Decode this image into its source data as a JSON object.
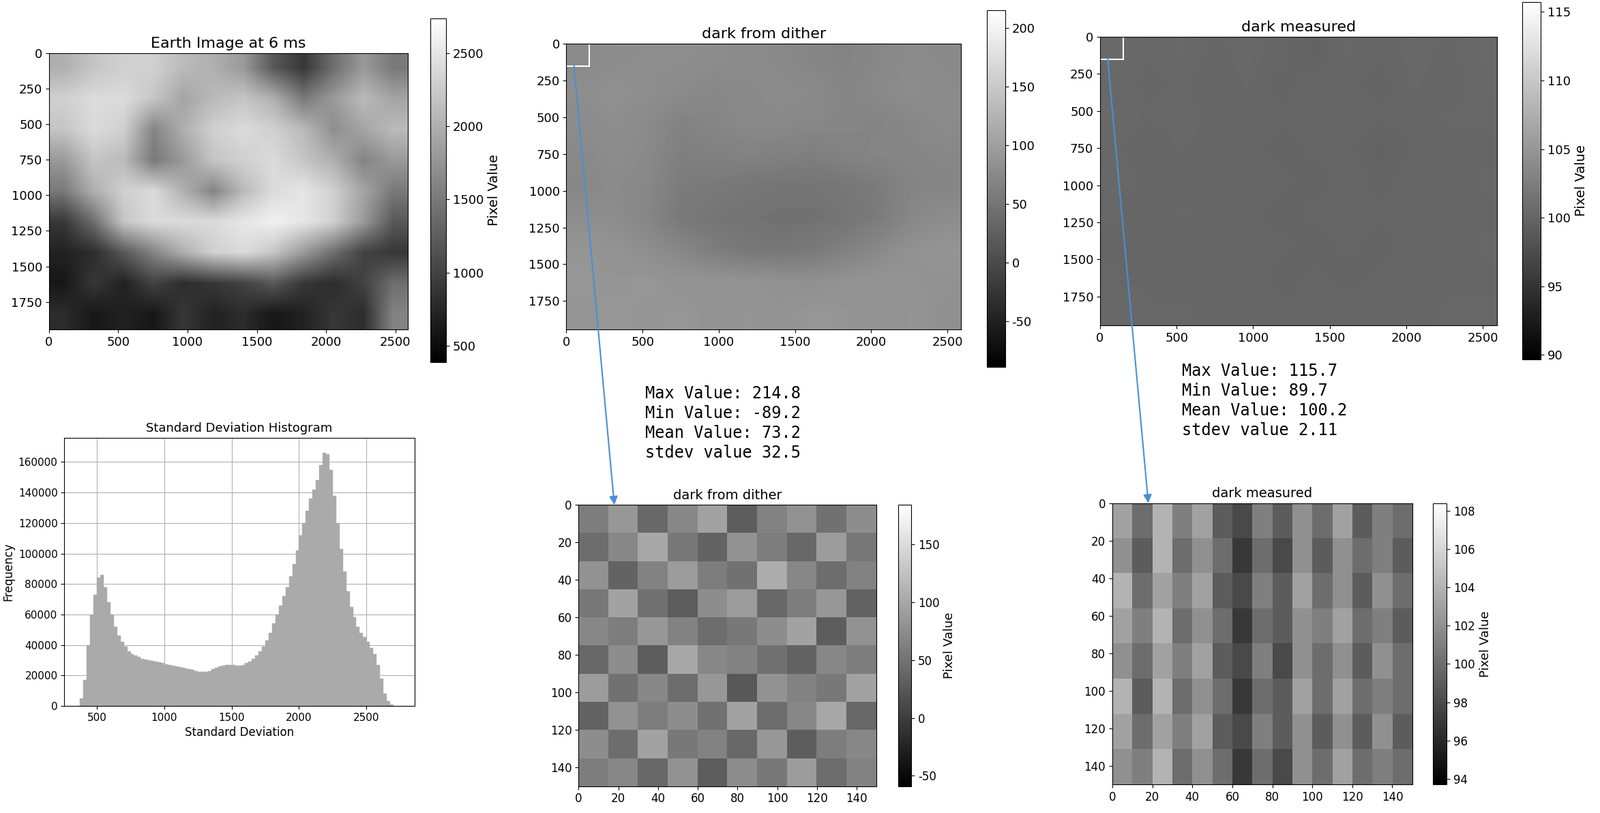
{
  "chart_data": [
    {
      "type": "heatmap",
      "title": "Earth Image at 6 ms",
      "xlim": [
        0,
        2592
      ],
      "ylim": [
        1944,
        0
      ],
      "xticks": [
        0,
        500,
        1000,
        1500,
        2000,
        2500
      ],
      "yticks": [
        0,
        250,
        500,
        750,
        1000,
        1250,
        1500,
        1750
      ],
      "cells": [
        [
          2000,
          2200,
          2300,
          2300,
          2100,
          2000,
          1800,
          1200,
          900,
          1400,
          1800,
          1500
        ],
        [
          2300,
          2400,
          2400,
          2200,
          1900,
          2100,
          2200,
          2000,
          1500,
          1800,
          2100,
          1900
        ],
        [
          2200,
          2400,
          2300,
          1600,
          2000,
          2300,
          2400,
          2300,
          2100,
          1700,
          1900,
          2100
        ],
        [
          1800,
          2200,
          2100,
          1500,
          1800,
          2200,
          2300,
          2400,
          2200,
          2000,
          1600,
          1800
        ],
        [
          1500,
          2000,
          2300,
          2400,
          2000,
          1600,
          2100,
          2400,
          2500,
          2300,
          1900,
          1500
        ],
        [
          900,
          1400,
          2200,
          2400,
          2400,
          2400,
          2500,
          2600,
          2500,
          2300,
          1800,
          1200
        ],
        [
          700,
          800,
          1200,
          1600,
          2000,
          2300,
          2400,
          2200,
          1800,
          1400,
          1000,
          900
        ],
        [
          600,
          900,
          700,
          1000,
          800,
          900,
          1000,
          1200,
          900,
          800,
          1000,
          1400
        ],
        [
          800,
          600,
          700,
          600,
          900,
          700,
          800,
          600,
          700,
          900,
          800,
          1600
        ]
      ],
      "colorbar": {
        "range": [
          388,
          2737
        ],
        "ticks": [
          500,
          1000,
          1500,
          2000,
          2500
        ],
        "label": "Pixel Value"
      }
    },
    {
      "type": "histogram",
      "title": "Standard Deviation Histogram",
      "x_label": "Standard Deviation",
      "y_label": "Frequency",
      "color": "#aaaaaa",
      "grid": true,
      "xlim": [
        258,
        2856
      ],
      "ylim": [
        0,
        176000
      ],
      "xticks": [
        500,
        1000,
        1500,
        2000,
        2500
      ],
      "yticks": [
        0,
        20000,
        40000,
        60000,
        80000,
        100000,
        120000,
        140000,
        160000
      ],
      "bins": [
        375,
        400,
        425,
        450,
        475,
        500,
        525,
        550,
        575,
        600,
        625,
        650,
        675,
        700,
        725,
        750,
        775,
        800,
        825,
        850,
        875,
        900,
        925,
        950,
        975,
        1000,
        1025,
        1050,
        1075,
        1100,
        1125,
        1150,
        1175,
        1200,
        1225,
        1250,
        1275,
        1300,
        1325,
        1350,
        1375,
        1400,
        1425,
        1450,
        1475,
        1500,
        1525,
        1550,
        1575,
        1600,
        1625,
        1650,
        1675,
        1700,
        1725,
        1750,
        1775,
        1800,
        1825,
        1850,
        1875,
        1900,
        1925,
        1950,
        1975,
        2000,
        2025,
        2050,
        2075,
        2100,
        2125,
        2150,
        2175,
        2200,
        2225,
        2250,
        2275,
        2300,
        2325,
        2350,
        2375,
        2400,
        2425,
        2450,
        2475,
        2500,
        2525,
        2550,
        2575,
        2600,
        2625,
        2650,
        2675,
        2700
      ],
      "counts": [
        5000,
        17000,
        40000,
        60000,
        73000,
        84000,
        86000,
        78000,
        68000,
        60000,
        52000,
        46000,
        42000,
        39000,
        36000,
        34000,
        33000,
        32000,
        31000,
        30500,
        30000,
        29500,
        29000,
        28500,
        28000,
        27500,
        27000,
        26500,
        26000,
        25500,
        25000,
        24500,
        24000,
        23500,
        23000,
        22500,
        22500,
        22500,
        23000,
        24000,
        25000,
        26000,
        26500,
        27000,
        27000,
        27000,
        26500,
        26500,
        27000,
        28000,
        29000,
        31000,
        33000,
        36000,
        39000,
        43000,
        48000,
        54000,
        60000,
        66000,
        72000,
        78000,
        85000,
        93000,
        102000,
        112000,
        120000,
        128000,
        136000,
        142000,
        148000,
        158000,
        166000,
        165000,
        155000,
        138000,
        120000,
        103000,
        88000,
        75000,
        65000,
        58000,
        52000,
        48000,
        45000,
        42000,
        38000,
        34000,
        27000,
        18000,
        8000,
        3000,
        1000
      ]
    },
    {
      "type": "heatmap",
      "title": "dark from dither",
      "xlim": [
        0,
        2592
      ],
      "ylim": [
        1944,
        0
      ],
      "xticks": [
        0,
        500,
        1000,
        1500,
        2000,
        2500
      ],
      "yticks": [
        0,
        250,
        500,
        750,
        1000,
        1250,
        1500,
        1750
      ],
      "cells": [
        [
          75,
          78,
          80,
          80,
          78,
          76,
          74,
          70,
          68,
          72,
          76,
          74
        ],
        [
          80,
          82,
          80,
          76,
          72,
          74,
          76,
          75,
          70,
          74,
          78,
          76
        ],
        [
          78,
          80,
          76,
          66,
          70,
          74,
          74,
          72,
          70,
          68,
          72,
          76
        ],
        [
          74,
          78,
          74,
          62,
          64,
          66,
          64,
          62,
          66,
          70,
          70,
          72
        ],
        [
          72,
          76,
          72,
          58,
          56,
          52,
          50,
          50,
          52,
          58,
          68,
          70
        ],
        [
          80,
          78,
          70,
          55,
          50,
          48,
          46,
          46,
          50,
          58,
          72,
          78
        ],
        [
          88,
          86,
          80,
          72,
          60,
          54,
          52,
          56,
          64,
          74,
          84,
          88
        ],
        [
          90,
          88,
          90,
          86,
          88,
          86,
          84,
          82,
          86,
          88,
          86,
          84
        ],
        [
          88,
          90,
          88,
          90,
          86,
          88,
          86,
          90,
          88,
          86,
          88,
          82
        ]
      ],
      "colorbar": {
        "range": [
          -89.2,
          214.8
        ],
        "ticks": [
          -50,
          0,
          50,
          100,
          150,
          200
        ]
      },
      "annotations": [
        "Max Value: 214.8",
        "Min Value: -89.2",
        "Mean Value: 73.2",
        "stdev value 32.5"
      ]
    },
    {
      "type": "heatmap",
      "title": "dark from dither",
      "xlim": [
        0,
        150
      ],
      "ylim": [
        150,
        0
      ],
      "xticks": [
        0,
        20,
        40,
        60,
        80,
        100,
        120,
        140
      ],
      "yticks": [
        0,
        20,
        40,
        60,
        80,
        100,
        120,
        140
      ],
      "cells": [
        [
          60,
          85,
          40,
          70,
          95,
          30,
          65,
          80,
          50,
          75
        ],
        [
          45,
          70,
          100,
          55,
          35,
          80,
          60,
          40,
          90,
          55
        ],
        [
          80,
          35,
          65,
          90,
          60,
          50,
          105,
          70,
          45,
          65
        ],
        [
          55,
          95,
          50,
          30,
          75,
          90,
          40,
          60,
          85,
          35
        ],
        [
          70,
          60,
          85,
          65,
          45,
          55,
          75,
          95,
          30,
          80
        ],
        [
          40,
          75,
          30,
          100,
          70,
          65,
          50,
          35,
          70,
          60
        ],
        [
          90,
          50,
          70,
          45,
          85,
          25,
          80,
          65,
          55,
          95
        ],
        [
          35,
          80,
          60,
          75,
          50,
          95,
          45,
          70,
          100,
          40
        ],
        [
          75,
          45,
          95,
          55,
          65,
          40,
          85,
          30,
          60,
          70
        ],
        [
          60,
          70,
          40,
          80,
          30,
          75,
          55,
          90,
          45,
          65
        ]
      ],
      "colorbar": {
        "range": [
          -59,
          184
        ],
        "ticks": [
          -50,
          0,
          50,
          100,
          150
        ],
        "label": "Pixel Value"
      }
    },
    {
      "type": "heatmap",
      "title": "dark measured",
      "xlim": [
        0,
        2592
      ],
      "ylim": [
        1944,
        0
      ],
      "xticks": [
        0,
        500,
        1000,
        1500,
        2000,
        2500
      ],
      "yticks": [
        0,
        250,
        500,
        750,
        1000,
        1250,
        1500,
        1750
      ],
      "cells": [
        [
          100.5,
          100.2,
          100.4,
          100.1,
          100.3,
          100.0,
          99.8,
          100.2,
          100.0,
          100.3,
          100.1,
          100.4
        ],
        [
          100.3,
          100.1,
          100.2,
          100.0,
          100.2,
          99.9,
          100.1,
          100.0,
          99.9,
          100.2,
          100.0,
          100.3
        ],
        [
          100.4,
          100.2,
          100.3,
          100.1,
          100.1,
          100.0,
          100.0,
          100.1,
          100.0,
          100.1,
          100.2,
          100.2
        ],
        [
          100.2,
          100.0,
          100.2,
          100.0,
          100.0,
          99.9,
          100.0,
          100.0,
          99.8,
          100.0,
          100.1,
          100.1
        ],
        [
          100.3,
          100.1,
          100.1,
          100.0,
          100.1,
          100.0,
          99.9,
          100.1,
          99.9,
          100.1,
          100.0,
          100.2
        ],
        [
          100.2,
          100.0,
          100.2,
          100.1,
          100.0,
          99.9,
          100.0,
          100.0,
          100.0,
          100.0,
          100.1,
          100.1
        ],
        [
          100.1,
          100.0,
          100.1,
          100.0,
          100.0,
          100.0,
          99.9,
          100.0,
          99.9,
          100.1,
          100.0,
          100.2
        ],
        [
          100.2,
          100.1,
          100.0,
          100.0,
          100.1,
          99.9,
          100.0,
          99.9,
          100.0,
          100.0,
          100.1,
          100.1
        ],
        [
          100.3,
          100.2,
          100.2,
          100.1,
          100.1,
          100.0,
          100.0,
          100.1,
          100.0,
          100.1,
          100.2,
          100.2
        ]
      ],
      "colorbar": {
        "range": [
          89.7,
          115.7
        ],
        "ticks": [
          90,
          95,
          100,
          105,
          110,
          115
        ],
        "label": "Pixel Value"
      },
      "annotations": [
        "Max Value: 115.7",
        "Min Value: 89.7",
        "Mean Value: 100.2",
        "stdev value 2.11"
      ]
    },
    {
      "type": "heatmap",
      "title": "dark measured",
      "xlim": [
        0,
        150
      ],
      "ylim": [
        150,
        0
      ],
      "xticks": [
        0,
        20,
        40,
        60,
        80,
        100,
        120,
        140
      ],
      "yticks": [
        0,
        20,
        40,
        60,
        80,
        100,
        120,
        140
      ],
      "cells": [
        [
          103,
          100,
          104,
          101,
          103,
          99,
          98,
          101,
          99,
          102,
          100,
          103,
          99,
          101,
          100
        ],
        [
          102,
          99,
          104,
          100,
          102,
          100,
          97,
          100,
          98,
          102,
          99,
          102,
          100,
          101,
          99
        ],
        [
          104,
          100,
          103,
          101,
          103,
          99,
          98,
          101,
          99,
          103,
          100,
          102,
          99,
          102,
          100
        ],
        [
          103,
          101,
          104,
          100,
          102,
          100,
          97,
          100,
          99,
          102,
          101,
          103,
          100,
          101,
          99
        ],
        [
          102,
          100,
          103,
          101,
          103,
          99,
          98,
          101,
          98,
          102,
          100,
          102,
          99,
          102,
          100
        ],
        [
          104,
          99,
          104,
          100,
          102,
          100,
          97,
          100,
          99,
          103,
          100,
          103,
          100,
          101,
          100
        ],
        [
          103,
          100,
          103,
          101,
          103,
          99,
          98,
          101,
          99,
          102,
          99,
          102,
          99,
          102,
          99
        ],
        [
          102,
          101,
          104,
          100,
          102,
          100,
          97,
          100,
          98,
          102,
          100,
          103,
          100,
          101,
          100
        ]
      ],
      "colorbar": {
        "range": [
          93.7,
          108.4
        ],
        "ticks": [
          94,
          96,
          98,
          100,
          102,
          104,
          106,
          108
        ],
        "label": "Pixel Value"
      }
    }
  ]
}
